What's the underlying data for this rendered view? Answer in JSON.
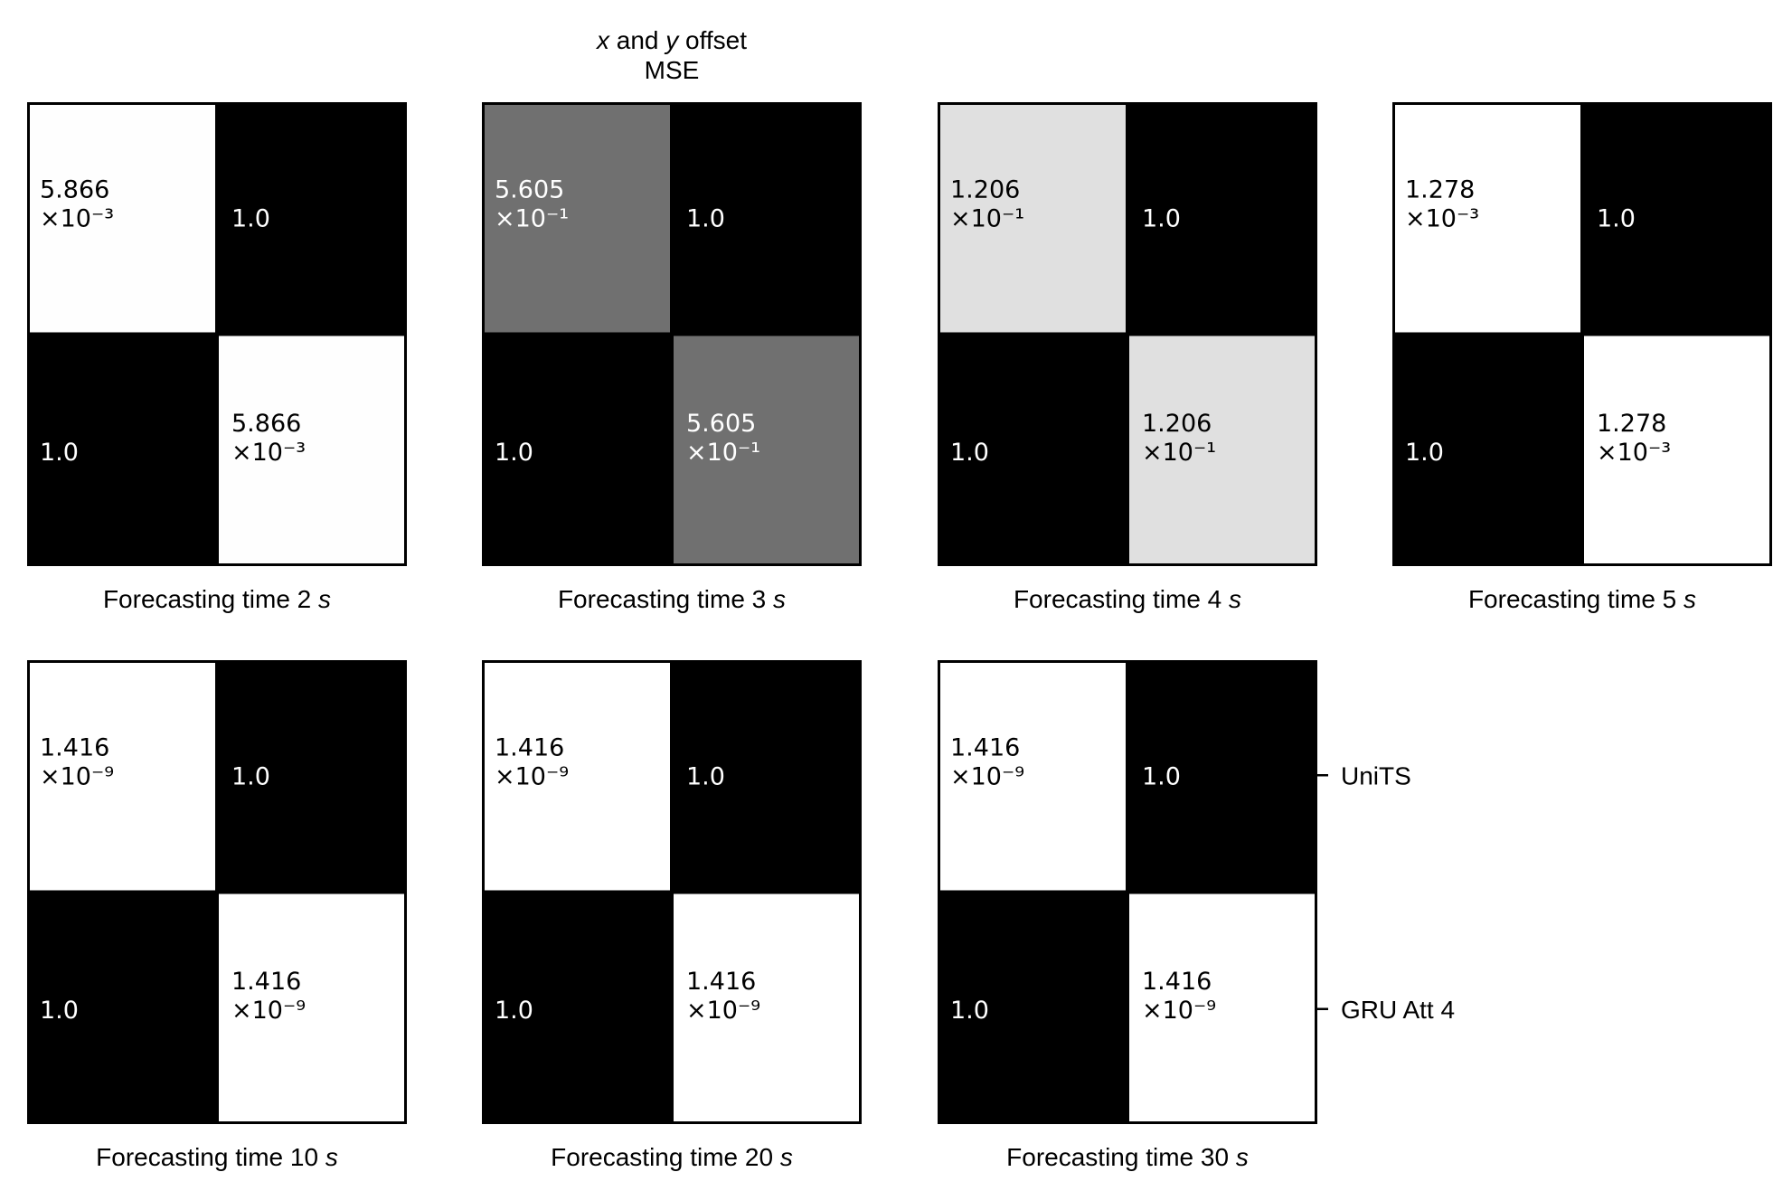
{
  "chart_data": {
    "type": "heatmap",
    "title": "x and y offset",
    "title_italic": [
      0,
      2
    ],
    "subtitle": "MSE",
    "colormap": "gray",
    "value_range": [
      0,
      1
    ],
    "row_tick_labels": [
      "UniTS",
      "GRU Att 4"
    ],
    "panels": [
      {
        "title": "Forecasting time 2",
        "unit": "s",
        "cells": [
          [
            {
              "mantissa": "5.866",
              "exponent": "-3",
              "value": 0.005866
            },
            {
              "text": "1.0",
              "value": 1.0
            }
          ],
          [
            {
              "text": "1.0",
              "value": 1.0
            },
            {
              "mantissa": "5.866",
              "exponent": "-3",
              "value": 0.005866
            }
          ]
        ]
      },
      {
        "title": "Forecasting time 3",
        "unit": "s",
        "cells": [
          [
            {
              "mantissa": "5.605",
              "exponent": "-1",
              "value": 0.5605
            },
            {
              "text": "1.0",
              "value": 1.0
            }
          ],
          [
            {
              "text": "1.0",
              "value": 1.0
            },
            {
              "mantissa": "5.605",
              "exponent": "-1",
              "value": 0.5605
            }
          ]
        ]
      },
      {
        "title": "Forecasting time 4",
        "unit": "s",
        "cells": [
          [
            {
              "mantissa": "1.206",
              "exponent": "-1",
              "value": 0.1206
            },
            {
              "text": "1.0",
              "value": 1.0
            }
          ],
          [
            {
              "text": "1.0",
              "value": 1.0
            },
            {
              "mantissa": "1.206",
              "exponent": "-1",
              "value": 0.1206
            }
          ]
        ]
      },
      {
        "title": "Forecasting time 5",
        "unit": "s",
        "cells": [
          [
            {
              "mantissa": "1.278",
              "exponent": "-3",
              "value": 0.001278
            },
            {
              "text": "1.0",
              "value": 1.0
            }
          ],
          [
            {
              "text": "1.0",
              "value": 1.0
            },
            {
              "mantissa": "1.278",
              "exponent": "-3",
              "value": 0.001278
            }
          ]
        ]
      },
      {
        "title": "Forecasting time 10",
        "unit": "s",
        "cells": [
          [
            {
              "mantissa": "1.416",
              "exponent": "-9",
              "value": 1.416e-09
            },
            {
              "text": "1.0",
              "value": 1.0
            }
          ],
          [
            {
              "text": "1.0",
              "value": 1.0
            },
            {
              "mantissa": "1.416",
              "exponent": "-9",
              "value": 1.416e-09
            }
          ]
        ]
      },
      {
        "title": "Forecasting time 20",
        "unit": "s",
        "cells": [
          [
            {
              "mantissa": "1.416",
              "exponent": "-9",
              "value": 1.416e-09
            },
            {
              "text": "1.0",
              "value": 1.0
            }
          ],
          [
            {
              "text": "1.0",
              "value": 1.0
            },
            {
              "mantissa": "1.416",
              "exponent": "-9",
              "value": 1.416e-09
            }
          ]
        ]
      },
      {
        "title": "Forecasting time 30",
        "unit": "s",
        "cells": [
          [
            {
              "mantissa": "1.416",
              "exponent": "-9",
              "value": 1.416e-09
            },
            {
              "text": "1.0",
              "value": 1.0
            }
          ],
          [
            {
              "text": "1.0",
              "value": 1.0
            },
            {
              "mantissa": "1.416",
              "exponent": "-9",
              "value": 1.416e-09
            }
          ]
        ]
      }
    ]
  }
}
